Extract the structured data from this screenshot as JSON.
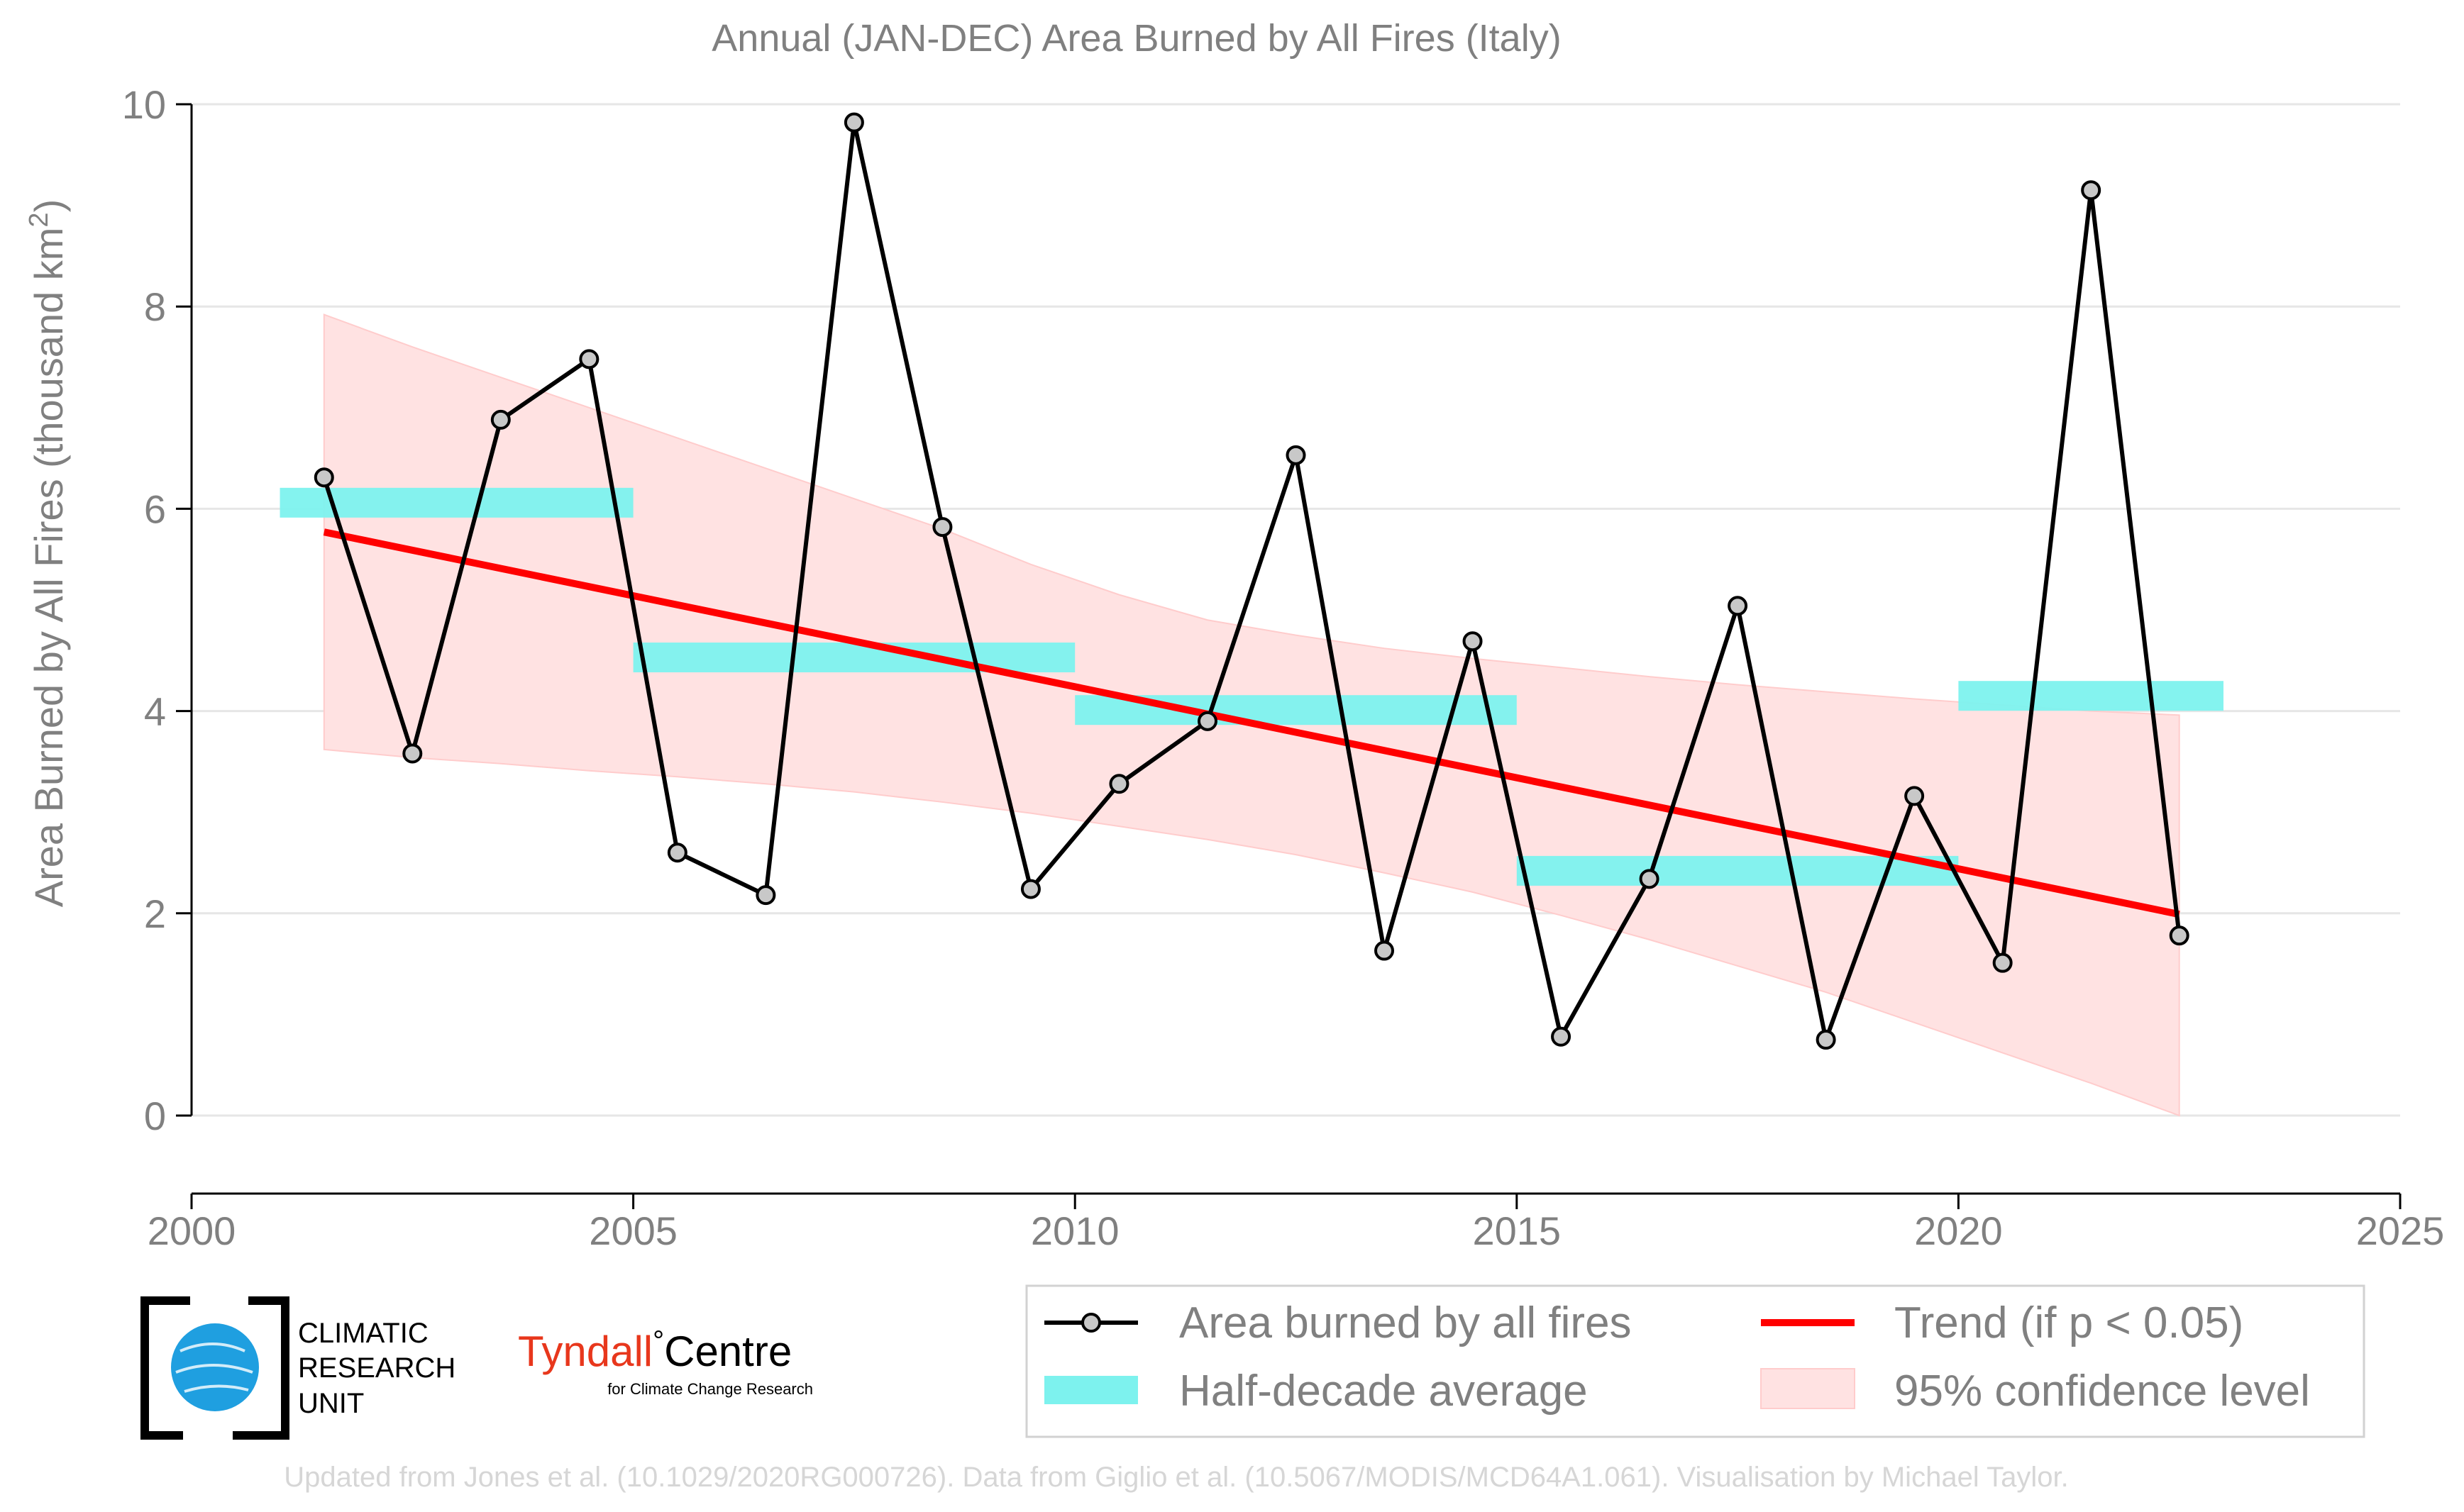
{
  "chart_data": {
    "type": "line",
    "title": "Annual (JAN-DEC) Area Burned by All Fires (Italy)",
    "ylabel": "Area Burned by All Fires (thousand km",
    "ylabel_sup": "2",
    "ylabel_end": ")",
    "xlabel": "",
    "xlim": [
      2000,
      2025
    ],
    "ylim": [
      0,
      10
    ],
    "x_ticks": [
      "2000",
      "2005",
      "2010",
      "2015",
      "2020",
      "2025"
    ],
    "y_ticks": [
      "0",
      "2",
      "4",
      "6",
      "8",
      "10"
    ],
    "grid": true,
    "series": [
      {
        "name": "Area burned by all fires",
        "x": [
          2001.5,
          2002.5,
          2003.5,
          2004.5,
          2005.5,
          2006.5,
          2007.5,
          2008.5,
          2009.5,
          2010.5,
          2011.5,
          2012.5,
          2013.5,
          2014.5,
          2015.5,
          2016.5,
          2017.5,
          2018.5,
          2019.5,
          2020.5,
          2021.5,
          2022.5
        ],
        "values": [
          6.31,
          3.58,
          6.88,
          7.48,
          2.6,
          2.18,
          9.82,
          5.82,
          2.24,
          3.28,
          3.9,
          6.53,
          1.63,
          4.69,
          0.78,
          2.34,
          5.04,
          0.75,
          3.16,
          1.51,
          9.15,
          1.78
        ]
      },
      {
        "name": "Half-decade average",
        "segments": [
          {
            "x_start": 2001,
            "x_end": 2005,
            "value": 6.06
          },
          {
            "x_start": 2005,
            "x_end": 2010,
            "value": 4.53
          },
          {
            "x_start": 2010,
            "x_end": 2015,
            "value": 4.01
          },
          {
            "x_start": 2015,
            "x_end": 2020,
            "value": 2.42
          },
          {
            "x_start": 2020,
            "x_end": 2023,
            "value": 4.15
          }
        ]
      },
      {
        "name": "Trend (if p < 0.05)",
        "x": [
          2001.5,
          2022.5
        ],
        "values": [
          5.77,
          1.99
        ]
      },
      {
        "name": "95% confidence level",
        "x": [
          2001.5,
          2002.5,
          2003.5,
          2004.5,
          2005.5,
          2006.5,
          2007.5,
          2008.5,
          2009.5,
          2010.5,
          2011.5,
          2012.5,
          2013.5,
          2014.5,
          2015.5,
          2016.5,
          2017.5,
          2018.5,
          2019.5,
          2020.5,
          2021.5,
          2022.5
        ],
        "upper": [
          7.92,
          7.6,
          7.3,
          7.0,
          6.7,
          6.4,
          6.1,
          5.8,
          5.45,
          5.15,
          4.9,
          4.75,
          4.62,
          4.52,
          4.43,
          4.34,
          4.26,
          4.19,
          4.12,
          4.06,
          4.0,
          3.96
        ],
        "lower": [
          3.62,
          3.54,
          3.48,
          3.41,
          3.35,
          3.28,
          3.2,
          3.1,
          2.99,
          2.86,
          2.73,
          2.58,
          2.4,
          2.21,
          1.98,
          1.74,
          1.48,
          1.22,
          0.92,
          0.62,
          0.32,
          0.0
        ]
      }
    ],
    "legend": {
      "placement": "bottom-right",
      "items": [
        {
          "label": "Area burned by all fires"
        },
        {
          "label": "Trend (if p < 0.05)"
        },
        {
          "label": "Half-decade average"
        },
        {
          "label": "95% confidence level"
        }
      ]
    },
    "colors": {
      "line": "#000000",
      "marker_fill": "#c8c8c8",
      "half_decade": "#7df2ee",
      "trend": "#ff0000",
      "confidence": "#ffe2e2",
      "grid": "#e6e6e6"
    }
  },
  "logos": {
    "cru": [
      "CLIMATIC",
      "RESEARCH",
      "UNIT"
    ],
    "tyndall_main": "Tyndall",
    "tyndall_degree": "°",
    "tyndall_centre": "Centre",
    "tyndall_sub": "for Climate Change Research"
  },
  "footer": "Updated from Jones et al. (10.1029/2020RG000726). Data from Giglio et al. (10.5067/MODIS/MCD64A1.061). Visualisation by Michael Taylor."
}
